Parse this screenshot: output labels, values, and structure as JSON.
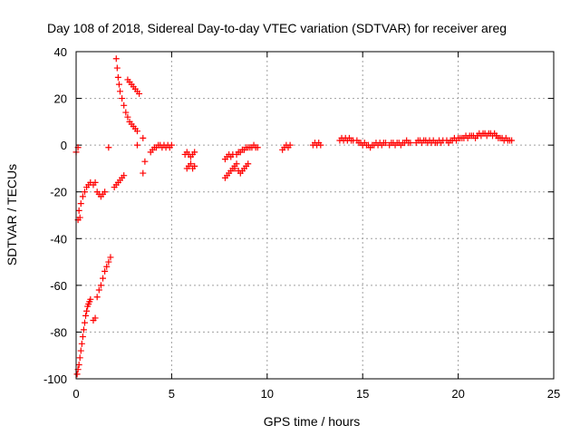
{
  "chart_data": {
    "type": "scatter",
    "title": "Day 108 of 2018, Sidereal Day-to-day VTEC variation (SDTVAR) for receiver areg",
    "xlabel": "GPS time / hours",
    "ylabel": "SDTVAR / TECUs",
    "xlim": [
      0,
      25
    ],
    "ylim": [
      -100,
      40
    ],
    "xticks": [
      0,
      5,
      10,
      15,
      20,
      25
    ],
    "yticks": [
      -100,
      -80,
      -60,
      -40,
      -20,
      0,
      20,
      40
    ],
    "grid": true,
    "marker": "+",
    "color": "#ff0000",
    "segments": [
      {
        "x": [
          0.0,
          0.1
        ],
        "y": [
          -3,
          -1
        ]
      },
      {
        "x": [
          0.1,
          0.2
        ],
        "y": [
          -32,
          -31
        ]
      },
      {
        "x": [
          0.15,
          0.25,
          0.35,
          0.45,
          0.55,
          0.65,
          0.75
        ],
        "y": [
          -28,
          -25,
          -22,
          -20,
          -18,
          -17,
          -16
        ]
      },
      {
        "x": [
          0.05,
          0.1,
          0.15,
          0.2,
          0.25,
          0.3,
          0.35,
          0.4,
          0.45,
          0.5,
          0.55,
          0.6,
          0.65,
          0.7,
          0.75
        ],
        "y": [
          -98,
          -96,
          -94,
          -91,
          -88,
          -85,
          -82,
          -79,
          -76,
          -73,
          -71,
          -69,
          -68,
          -67,
          -66
        ]
      },
      {
        "x": [
          0.9,
          1.0
        ],
        "y": [
          -75,
          -74
        ]
      },
      {
        "x": [
          1.1,
          1.2,
          1.3,
          1.4,
          1.5,
          1.6,
          1.7,
          1.8
        ],
        "y": [
          -65,
          -62,
          -60,
          -57,
          -54,
          -52,
          -50,
          -48
        ]
      },
      {
        "x": [
          0.9,
          1.0,
          1.1,
          1.2,
          1.3,
          1.4,
          1.5
        ],
        "y": [
          -17,
          -16,
          -20,
          -21,
          -22,
          -21,
          -20
        ]
      },
      {
        "x": [
          1.7
        ],
        "y": [
          -1
        ]
      },
      {
        "x": [
          2.0,
          2.1,
          2.2,
          2.3,
          2.4,
          2.5
        ],
        "y": [
          -18,
          -17,
          -16,
          -15,
          -14,
          -13
        ]
      },
      {
        "x": [
          2.1,
          2.15,
          2.2,
          2.25,
          2.3,
          2.4,
          2.5,
          2.6,
          2.7,
          2.8,
          2.9,
          3.0,
          3.1,
          3.2
        ],
        "y": [
          37,
          33,
          29,
          26,
          23,
          20,
          17,
          14,
          12,
          10,
          9,
          8,
          7,
          6
        ]
      },
      {
        "x": [
          2.7,
          2.8,
          2.9,
          3.0,
          3.1,
          3.2,
          3.3
        ],
        "y": [
          28,
          27,
          26,
          25,
          24,
          23,
          22
        ]
      },
      {
        "x": [
          3.5,
          3.6
        ],
        "y": [
          -12,
          -7
        ]
      },
      {
        "x": [
          3.5
        ],
        "y": [
          3
        ]
      },
      {
        "x": [
          3.2
        ],
        "y": [
          0
        ]
      },
      {
        "x": [
          3.9,
          4.0,
          4.1,
          4.2,
          4.3,
          4.4,
          4.5,
          4.6,
          4.7,
          4.8,
          4.9,
          5.0
        ],
        "y": [
          -3,
          -2,
          -1,
          -1,
          0,
          0,
          -1,
          0,
          -1,
          0,
          -1,
          0
        ]
      },
      {
        "x": [
          5.7,
          5.8,
          5.9,
          6.0,
          6.1,
          6.2
        ],
        "y": [
          -4,
          -3,
          -4,
          -5,
          -4,
          -3
        ]
      },
      {
        "x": [
          5.8,
          5.9,
          6.0,
          6.1,
          6.2
        ],
        "y": [
          -10,
          -9,
          -8,
          -10,
          -9
        ]
      },
      {
        "x": [
          7.8,
          7.9,
          8.0,
          8.1,
          8.2
        ],
        "y": [
          -6,
          -5,
          -4,
          -5,
          -4
        ]
      },
      {
        "x": [
          7.8,
          7.9,
          8.0,
          8.1,
          8.2,
          8.3,
          8.4
        ],
        "y": [
          -14,
          -13,
          -12,
          -11,
          -10,
          -9,
          -8
        ]
      },
      {
        "x": [
          8.3,
          8.5,
          8.6,
          8.7,
          8.8,
          8.9,
          9.0
        ],
        "y": [
          -10,
          -11,
          -12,
          -11,
          -10,
          -9,
          -8
        ]
      },
      {
        "x": [
          8.4,
          8.5,
          8.6,
          8.7,
          8.8,
          8.9,
          9.0,
          9.1,
          9.2,
          9.3,
          9.4,
          9.5
        ],
        "y": [
          -4,
          -3,
          -3,
          -2,
          -2,
          -1,
          -1,
          -1,
          -1,
          0,
          -1,
          -1
        ]
      },
      {
        "x": [
          10.8,
          10.9,
          11.0,
          11.1,
          11.2
        ],
        "y": [
          -2,
          -1,
          0,
          -1,
          0
        ]
      },
      {
        "x": [
          12.4,
          12.5,
          12.6,
          12.7,
          12.8
        ],
        "y": [
          0,
          1,
          0,
          1,
          0
        ]
      },
      {
        "x": [
          13.8,
          13.9,
          14.0,
          14.1,
          14.2,
          14.3,
          14.4,
          14.5
        ],
        "y": [
          2,
          3,
          2,
          3,
          2,
          3,
          2,
          2
        ]
      },
      {
        "x": [
          14.7,
          14.8,
          14.9,
          15.0,
          15.1,
          15.2,
          15.3,
          15.4,
          15.5,
          15.6,
          15.7,
          15.8,
          15.9,
          16.0,
          16.1,
          16.2
        ],
        "y": [
          2,
          1,
          1,
          0,
          1,
          0,
          0,
          -1,
          0,
          0,
          1,
          0,
          1,
          0,
          1,
          1
        ]
      },
      {
        "x": [
          16.4,
          16.5,
          16.6,
          16.7,
          16.8,
          16.9,
          17.0,
          17.1,
          17.2,
          17.3,
          17.4,
          17.5
        ],
        "y": [
          0,
          1,
          1,
          0,
          1,
          1,
          0,
          1,
          1,
          2,
          1,
          1
        ]
      },
      {
        "x": [
          17.8,
          17.9,
          18.0,
          18.1,
          18.2,
          18.3,
          18.4,
          18.5,
          18.6,
          18.7,
          18.8,
          18.9,
          19.0,
          19.1,
          19.2
        ],
        "y": [
          1,
          2,
          2,
          1,
          2,
          2,
          1,
          2,
          1,
          2,
          1,
          1,
          2,
          1,
          2
        ]
      },
      {
        "x": [
          19.4,
          19.5,
          19.6,
          19.7,
          19.8,
          19.9,
          20.0,
          20.1,
          20.2,
          20.3,
          20.4,
          20.5,
          20.6,
          20.7,
          20.8,
          20.9,
          21.0
        ],
        "y": [
          2,
          1,
          2,
          2,
          3,
          2,
          3,
          3,
          3,
          3,
          4,
          3,
          4,
          4,
          4,
          3,
          4
        ]
      },
      {
        "x": [
          21.0,
          21.1,
          21.2,
          21.3,
          21.4,
          21.5,
          21.6,
          21.7,
          21.8,
          21.9,
          22.0
        ],
        "y": [
          4,
          5,
          4,
          5,
          5,
          4,
          5,
          5,
          4,
          5,
          4
        ]
      },
      {
        "x": [
          22.0,
          22.1,
          22.2,
          22.3,
          22.4,
          22.5,
          22.6,
          22.7,
          22.8
        ],
        "y": [
          4,
          3,
          3,
          3,
          2,
          3,
          2,
          2,
          2
        ]
      }
    ]
  }
}
